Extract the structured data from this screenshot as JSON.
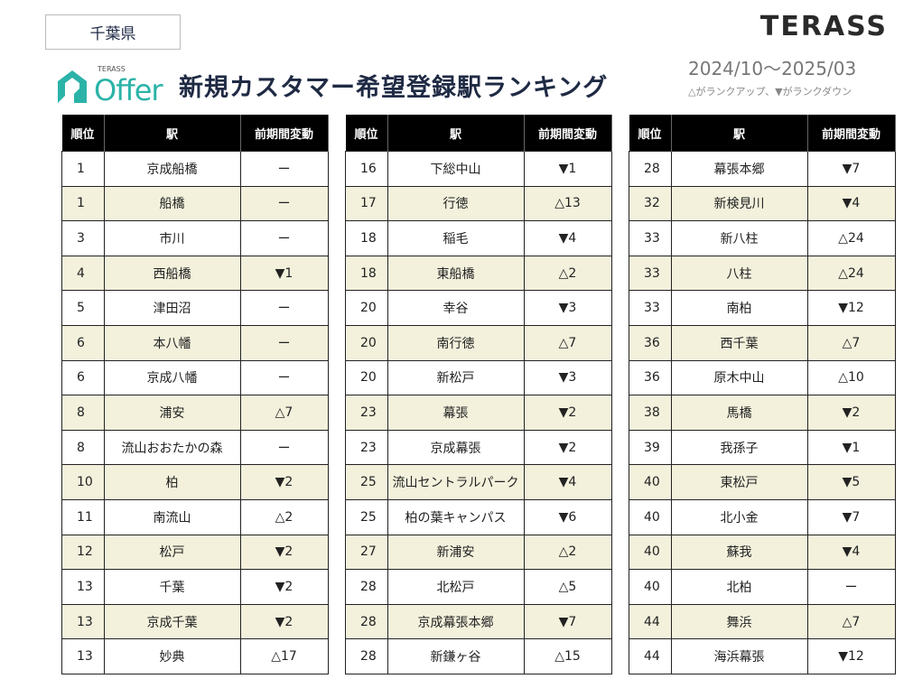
{
  "region": "千葉県",
  "brand": "TERASS",
  "logo": {
    "small": "TERASS",
    "main": "Offer"
  },
  "title": "新規カスタマー希望登録駅ランキング",
  "period": "2024/10～2025/03",
  "legend": "△がランクアップ、▼がランクダウン",
  "colors": {
    "header_bg": "#000000",
    "alt_row": "#f3f1dc",
    "title": "#1f2a44",
    "logo": "#2bb3a8"
  },
  "headers": [
    "順位",
    "駅",
    "前期間変動"
  ],
  "tables": [
    [
      [
        "1",
        "京成船橋",
        "ー"
      ],
      [
        "1",
        "船橋",
        "ー"
      ],
      [
        "3",
        "市川",
        "ー"
      ],
      [
        "4",
        "西船橋",
        "▼1"
      ],
      [
        "5",
        "津田沼",
        "ー"
      ],
      [
        "6",
        "本八幡",
        "ー"
      ],
      [
        "6",
        "京成八幡",
        "ー"
      ],
      [
        "8",
        "浦安",
        "△7"
      ],
      [
        "8",
        "流山おおたかの森",
        "ー"
      ],
      [
        "10",
        "柏",
        "▼2"
      ],
      [
        "11",
        "南流山",
        "△2"
      ],
      [
        "12",
        "松戸",
        "▼2"
      ],
      [
        "13",
        "千葉",
        "▼2"
      ],
      [
        "13",
        "京成千葉",
        "▼2"
      ],
      [
        "13",
        "妙典",
        "△17"
      ]
    ],
    [
      [
        "16",
        "下総中山",
        "▼1"
      ],
      [
        "17",
        "行徳",
        "△13"
      ],
      [
        "18",
        "稲毛",
        "▼4"
      ],
      [
        "18",
        "東船橋",
        "△2"
      ],
      [
        "20",
        "幸谷",
        "▼3"
      ],
      [
        "20",
        "南行徳",
        "△7"
      ],
      [
        "20",
        "新松戸",
        "▼3"
      ],
      [
        "23",
        "幕張",
        "▼2"
      ],
      [
        "23",
        "京成幕張",
        "▼2"
      ],
      [
        "25",
        "流山セントラルパーク",
        "▼4"
      ],
      [
        "25",
        "柏の葉キャンパス",
        "▼6"
      ],
      [
        "27",
        "新浦安",
        "△2"
      ],
      [
        "28",
        "北松戸",
        "△5"
      ],
      [
        "28",
        "京成幕張本郷",
        "▼7"
      ],
      [
        "28",
        "新鎌ヶ谷",
        "△15"
      ]
    ],
    [
      [
        "28",
        "幕張本郷",
        "▼7"
      ],
      [
        "32",
        "新検見川",
        "▼4"
      ],
      [
        "33",
        "新八柱",
        "△24"
      ],
      [
        "33",
        "八柱",
        "△24"
      ],
      [
        "33",
        "南柏",
        "▼12"
      ],
      [
        "36",
        "西千葉",
        "△7"
      ],
      [
        "36",
        "原木中山",
        "△10"
      ],
      [
        "38",
        "馬橋",
        "▼2"
      ],
      [
        "39",
        "我孫子",
        "▼1"
      ],
      [
        "40",
        "東松戸",
        "▼5"
      ],
      [
        "40",
        "北小金",
        "▼7"
      ],
      [
        "40",
        "蘇我",
        "▼4"
      ],
      [
        "40",
        "北柏",
        "ー"
      ],
      [
        "44",
        "舞浜",
        "△7"
      ],
      [
        "44",
        "海浜幕張",
        "▼12"
      ]
    ]
  ]
}
